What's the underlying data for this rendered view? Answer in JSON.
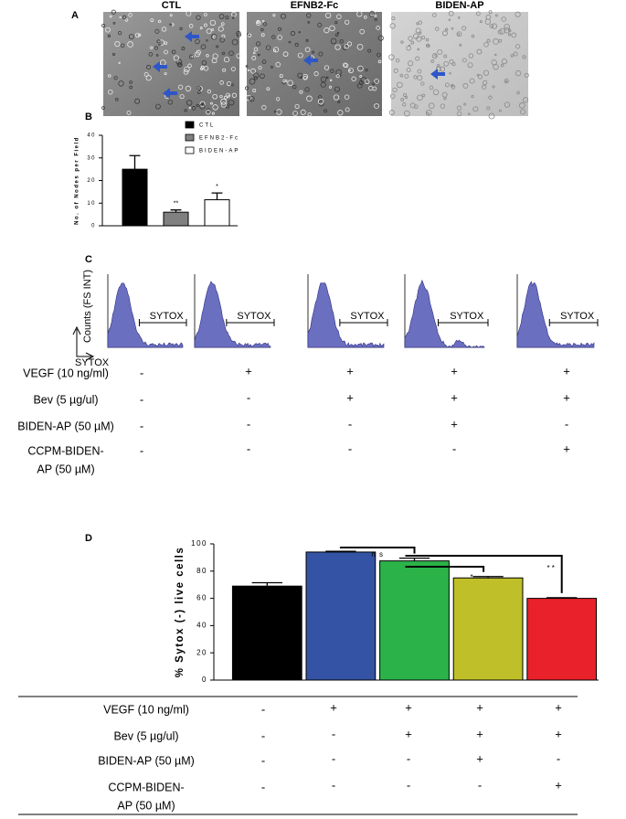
{
  "panel_labels": [
    "A",
    "B",
    "C",
    "D"
  ],
  "images": {
    "titles": [
      "CTL",
      "EFNB2-Fc",
      "BIDEN-AP"
    ]
  },
  "chart_data": [
    {
      "type": "bar",
      "ylabel": "No. of Nodes per Field",
      "categories": [
        null
      ],
      "ylim": [
        0,
        40
      ],
      "yticks": [
        0,
        10,
        20,
        30,
        40
      ],
      "series": [
        {
          "name": "CTL",
          "color": "#000000",
          "values": [
            25
          ],
          "errors": [
            6
          ]
        },
        {
          "name": "EFNB2-Fc",
          "color": "#808080",
          "values": [
            6
          ],
          "errors": [
            1
          ]
        },
        {
          "name": "BIDEN-AP",
          "color": "#ffffff",
          "values": [
            11.5
          ],
          "errors": [
            3
          ]
        }
      ],
      "annotations": [
        "**",
        "*"
      ]
    },
    {
      "type": "bar",
      "ylabel": "% Sytox (-) live cells",
      "categories": [
        null,
        null,
        null,
        null,
        null
      ],
      "values": [
        69,
        94,
        87.5,
        75,
        60
      ],
      "errors": [
        2.5,
        0.5,
        2,
        1,
        0.5
      ],
      "colors": [
        "#000000",
        "#3553a4",
        "#2bb34a",
        "#bfbf2a",
        "#e8212a"
      ],
      "ylim": [
        0,
        100
      ],
      "yticks": [
        0,
        20,
        40,
        60,
        80,
        100
      ],
      "annotations": [
        "n s",
        "*",
        "* *"
      ]
    }
  ],
  "flow": {
    "ylabel": "Counts (FS INT)",
    "xlabel": "SYTOX",
    "gates": [
      "SYTOX",
      "SYTOX",
      "SYTOX",
      "SYTOX",
      "SYTOX"
    ]
  },
  "treatments_c": {
    "rows": [
      {
        "label": [
          "VEGF (10 ng/ml)"
        ],
        "cells": [
          "-",
          "+",
          "+",
          "+",
          "+"
        ]
      },
      {
        "label": [
          "Bev (5 µg/ul)"
        ],
        "cells": [
          "-",
          "-",
          "+",
          "+",
          "+"
        ]
      },
      {
        "label": [
          "BIDEN-AP (50 µM)"
        ],
        "cells": [
          "-",
          "-",
          "-",
          "+",
          "-"
        ]
      },
      {
        "label": [
          "CCPM-BIDEN-",
          "AP (50 µM)"
        ],
        "cells": [
          "-",
          "-",
          "-",
          "-",
          "+"
        ]
      }
    ]
  },
  "treatments_d": {
    "rows": [
      {
        "label": [
          "VEGF (10 ng/ml)"
        ],
        "cells": [
          "-",
          "+",
          "+",
          "+",
          "+"
        ]
      },
      {
        "label": [
          "Bev (5 µg/ul)"
        ],
        "cells": [
          "-",
          "-",
          "+",
          "+",
          "+"
        ]
      },
      {
        "label": [
          "BIDEN-AP (50 µM)"
        ],
        "cells": [
          "-",
          "-",
          "-",
          "+",
          "-"
        ]
      },
      {
        "label": [
          "CCPM-BIDEN-",
          "AP (50 µM)"
        ],
        "cells": [
          "-",
          "-",
          "-",
          "-",
          "+"
        ]
      }
    ]
  }
}
